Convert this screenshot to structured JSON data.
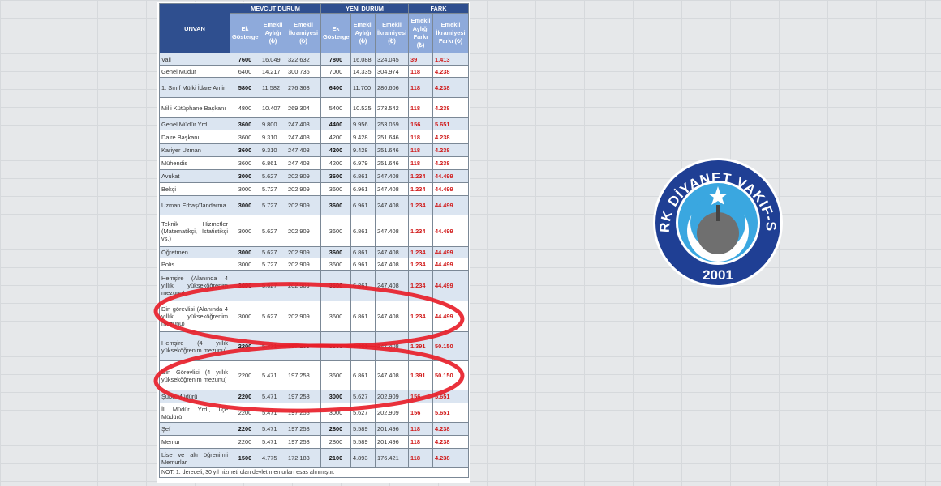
{
  "header": {
    "unvan": "UNVAN",
    "groups": [
      "MEVCUT DURUM",
      "YENİ DURUM",
      "FARK"
    ],
    "sub": [
      "Ek Gösterge",
      "Emekli Aylığı (₺)",
      "Emekli İkramiyesi (₺)",
      "Ek Gösterge",
      "Emekli Aylığı (₺)",
      "Emekli İkramiyesi (₺)",
      "Emekli Aylığı Farkı (₺)",
      "Emekli İkramiyesi Farkı (₺)"
    ]
  },
  "rows": [
    [
      "Vali",
      "7600",
      "16.049",
      "322.632",
      "7800",
      "16.088",
      "324.045",
      "39",
      "1.413"
    ],
    [
      "Genel Müdür",
      "6400",
      "14.217",
      "300.736",
      "7000",
      "14.335",
      "304.974",
      "118",
      "4.238"
    ],
    [
      "1. Sınıf Mülki İdare Amiri",
      "5800",
      "11.582",
      "276.368",
      "6400",
      "11.700",
      "280.606",
      "118",
      "4.238"
    ],
    [
      "Milli Kütüphane Başkanı",
      "4800",
      "10.407",
      "269.304",
      "5400",
      "10.525",
      "273.542",
      "118",
      "4.238"
    ],
    [
      "Genel Müdür Yrd",
      "3600",
      "9.800",
      "247.408",
      "4400",
      "9.956",
      "253.059",
      "156",
      "5.651"
    ],
    [
      "Daire Başkanı",
      "3600",
      "9.310",
      "247.408",
      "4200",
      "9.428",
      "251.646",
      "118",
      "4.238"
    ],
    [
      "Kariyer Uzman",
      "3600",
      "9.310",
      "247.408",
      "4200",
      "9.428",
      "251.646",
      "118",
      "4.238"
    ],
    [
      "Mühendis",
      "3600",
      "6.861",
      "247.408",
      "4200",
      "6.979",
      "251.646",
      "118",
      "4.238"
    ],
    [
      "Avukat",
      "3000",
      "5.627",
      "202.909",
      "3600",
      "6.861",
      "247.408",
      "1.234",
      "44.499"
    ],
    [
      "Bekçi",
      "3000",
      "5.727",
      "202.909",
      "3600",
      "6.961",
      "247.408",
      "1.234",
      "44.499"
    ],
    [
      "Uzman Erbaş/Jandarma",
      "3000",
      "5.727",
      "202.909",
      "3600",
      "6.961",
      "247.408",
      "1.234",
      "44.499"
    ],
    [
      "Teknik Hizmetler (Matematikçi, İstatistikçi vs.)",
      "3000",
      "5.627",
      "202.909",
      "3600",
      "6.861",
      "247.408",
      "1.234",
      "44.499"
    ],
    [
      "Öğretmen",
      "3000",
      "5.627",
      "202.909",
      "3600",
      "6.861",
      "247.408",
      "1.234",
      "44.499"
    ],
    [
      "Polis",
      "3000",
      "5.727",
      "202.909",
      "3600",
      "6.961",
      "247.408",
      "1.234",
      "44.499"
    ],
    [
      "Hemşire (Alanında 4 yıllık yükseköğrenim mezunu)",
      "3000",
      "5.627",
      "202.909",
      "3600",
      "6.861",
      "247.408",
      "1.234",
      "44.499"
    ],
    [
      "Din görevlisi (Alanında 4 yıllık yükseköğrenim mezunu)",
      "3000",
      "5.627",
      "202.909",
      "3600",
      "6.861",
      "247.408",
      "1.234",
      "44.499"
    ],
    [
      "Hemşire (4 yıllık yükseköğrenim mezunu)",
      "2200",
      "5.471",
      "197.258",
      "3600",
      "6.861",
      "247.408",
      "1.391",
      "50.150"
    ],
    [
      "Din Görevlisi (4 yıllık yükseköğrenim mezunu)",
      "2200",
      "5.471",
      "197.258",
      "3600",
      "6.861",
      "247.408",
      "1.391",
      "50.150"
    ],
    [
      "Şube Müdürü",
      "2200",
      "5.471",
      "197.258",
      "3000",
      "5.627",
      "202.909",
      "156",
      "5.651"
    ],
    [
      "İl Müdür Yrd., İlçe Müdürü",
      "2200",
      "5.471",
      "197.258",
      "3000",
      "5.627",
      "202.909",
      "156",
      "5.651"
    ],
    [
      "Şef",
      "2200",
      "5.471",
      "197.258",
      "2800",
      "5.589",
      "201.496",
      "118",
      "4.238"
    ],
    [
      "Memur",
      "2200",
      "5.471",
      "197.258",
      "2800",
      "5.589",
      "201.496",
      "118",
      "4.238"
    ],
    [
      "Lise ve altı öğrenimli Memurlar",
      "1500",
      "4.775",
      "172.183",
      "2100",
      "4.893",
      "176.421",
      "118",
      "4.238"
    ]
  ],
  "note": "NOT: 1. dereceli, 30 yıl hizmeti olan devlet memurları esas alınmıştır.",
  "logo": {
    "top_text": "TÜRK DİYANET VAKIF-SEN",
    "year": "2001"
  },
  "colors": {
    "header_dark": "#2f4f8f",
    "header_light": "#8eaadb",
    "shade": "#dbe5f1",
    "diff": "#d01818",
    "annotation": "#e8202a",
    "logo_blue": "#1f3f94"
  }
}
